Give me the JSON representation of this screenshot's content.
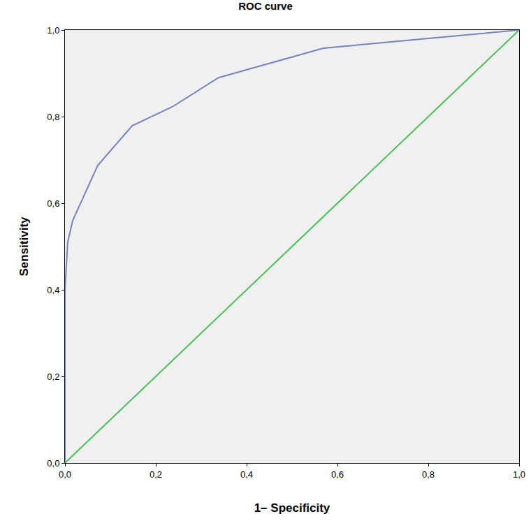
{
  "chart_data": {
    "type": "line",
    "title": "ROC curve",
    "x_label": "1– Specificity",
    "y_label": "Sensitivity",
    "xlim": [
      0,
      1
    ],
    "ylim": [
      0,
      1
    ],
    "xticks": [
      {
        "value": 0,
        "label": "0,0"
      },
      {
        "value": 0.2,
        "label": "0,2"
      },
      {
        "value": 0.4,
        "label": "0,4"
      },
      {
        "value": 0.6,
        "label": "0,6"
      },
      {
        "value": 0.8,
        "label": "0,8"
      },
      {
        "value": 1,
        "label": "1,0"
      }
    ],
    "yticks": [
      {
        "value": 0,
        "label": "0,0"
      },
      {
        "value": 0.2,
        "label": "0,2"
      },
      {
        "value": 0.4,
        "label": "0,4"
      },
      {
        "value": 0.6,
        "label": "0,6"
      },
      {
        "value": 0.8,
        "label": "0,8"
      },
      {
        "value": 1,
        "label": "1,0"
      }
    ],
    "grid": false,
    "series": [
      {
        "color": "#7383c4",
        "line_style": "solid",
        "x": [
          0,
          0,
          0.006,
          0.017,
          0.072,
          0.148,
          0.237,
          0.338,
          0.569,
          1
        ],
        "values": [
          0,
          0.4,
          0.51,
          0.56,
          0.687,
          0.779,
          0.823,
          0.89,
          0.958,
          1
        ]
      },
      {
        "color": "#4cc25a",
        "line_style": "solid",
        "x": [
          0,
          1
        ],
        "values": [
          0,
          1
        ]
      }
    ]
  }
}
